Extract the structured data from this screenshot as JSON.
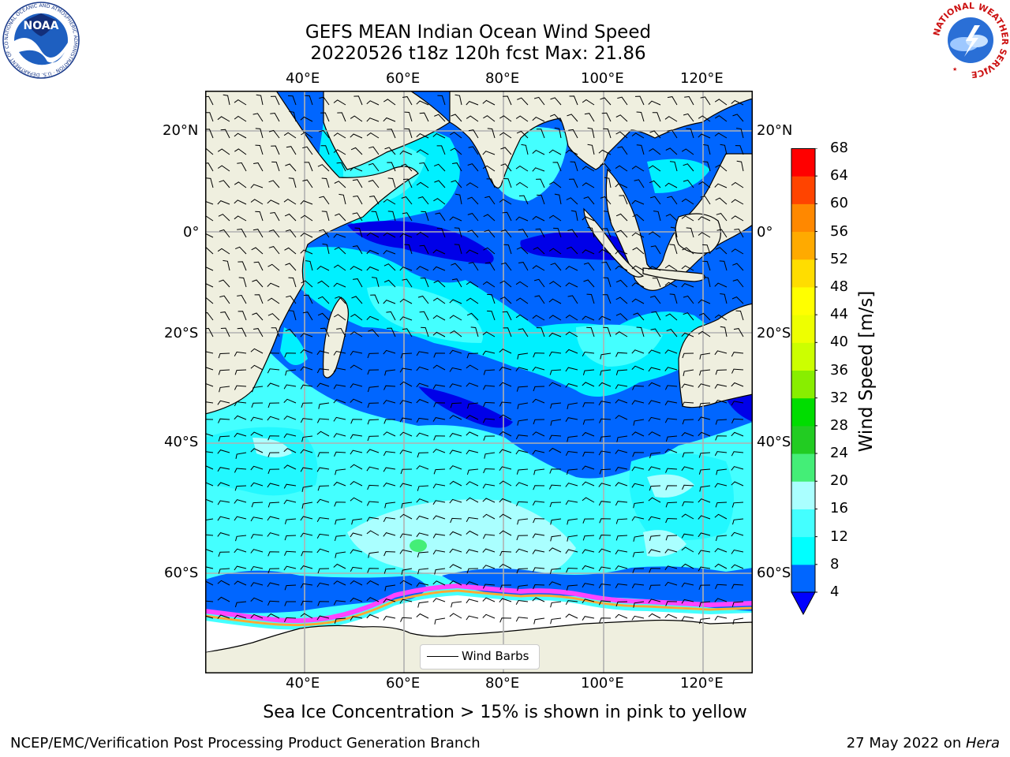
{
  "title": {
    "line1": "GEFS MEAN Indian Ocean Wind Speed",
    "line2": "20220526 t18z 120h fcst   Max: 21.86"
  },
  "map": {
    "lon_ticks": [
      "40°E",
      "60°E",
      "80°E",
      "100°E",
      "120°E"
    ],
    "lat_ticks": [
      "20°N",
      "0°",
      "20°S",
      "40°S",
      "60°S"
    ],
    "legend_label": "Wind Barbs",
    "colors": {
      "land": "#efefdf",
      "ice": "#ffffff",
      "ice_edge": [
        "#ff44ff",
        "#ffaa33"
      ],
      "wind_4_8": "#0066ff",
      "wind_8_12": "#00f0ff",
      "wind_12_16": "#44ffff",
      "wind_16_20": "#aaffff",
      "calm": "#0000e8"
    }
  },
  "colorbar": {
    "title": "Wind Speed [m/s]",
    "levels": [
      "4",
      "8",
      "12",
      "16",
      "20",
      "24",
      "28",
      "32",
      "36",
      "40",
      "44",
      "48",
      "52",
      "56",
      "60",
      "64",
      "68"
    ],
    "colors": [
      "#0066ff",
      "#00ffff",
      "#44ffff",
      "#aaffff",
      "#44ee77",
      "#22cc22",
      "#00dd00",
      "#88ee00",
      "#ccff00",
      "#eeff00",
      "#ffff00",
      "#ffdd00",
      "#ffaa00",
      "#ff8800",
      "#ff4400",
      "#ff0000"
    ],
    "extend_color": "#0000ff"
  },
  "caption": "Sea Ice Concentration > 15% is shown in pink to yellow",
  "footer": {
    "left": "NCEP/EMC/Verification Post Processing Product Generation Branch",
    "date": "27 May 2022 on ",
    "host": "Hera"
  },
  "logos": {
    "noaa": "NOAA",
    "noaa_ring": "NATIONAL OCEANIC AND ATMOSPHERIC ADMINISTRATION · U.S. DEPARTMENT OF COMMERCE ·",
    "nws_ring": "NATIONAL WEATHER SERVICE"
  }
}
